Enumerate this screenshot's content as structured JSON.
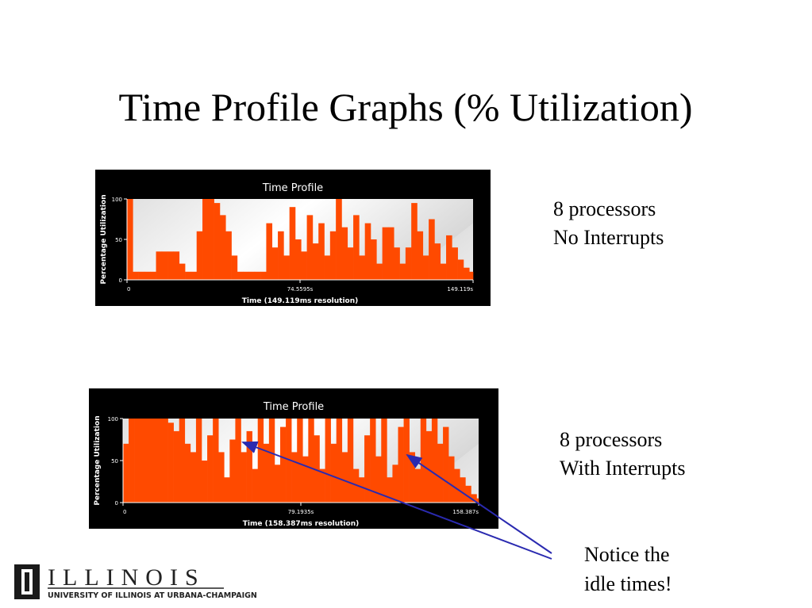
{
  "title": "Time Profile Graphs (% Utilization)",
  "chart_data": [
    {
      "type": "bar",
      "title": "Time Profile",
      "ylabel": "Percentage Utilization",
      "xlabel": "Time (149.119ms resolution)",
      "color": "#ff4a00",
      "xlim": [
        0,
        149.119
      ],
      "xticks": [
        0,
        {
          "value": 74.5595,
          "label": "74.5595s"
        },
        {
          "value": 149.119,
          "label": "149.119s"
        }
      ],
      "ylim": [
        0,
        100
      ],
      "yticks": [
        0,
        50,
        100
      ],
      "x": [
        0,
        2.5,
        5,
        7.5,
        10,
        12.5,
        15,
        17.5,
        20,
        22.5,
        25,
        27.5,
        30,
        32.5,
        35,
        37.5,
        40,
        42.5,
        45,
        47.5,
        50,
        52.5,
        55,
        57.5,
        60,
        62.5,
        65,
        67.5,
        70,
        72.5,
        75,
        77.5,
        80,
        82.5,
        85,
        87.5,
        90,
        92.5,
        95,
        97.5,
        100,
        102.5,
        105,
        107.5,
        110,
        112.5,
        115,
        117.5,
        120,
        122.5,
        125,
        127.5,
        130,
        132.5,
        135,
        137.5,
        140,
        142.5,
        145,
        147.5
      ],
      "values": [
        100,
        10,
        10,
        10,
        10,
        35,
        35,
        35,
        35,
        20,
        10,
        10,
        60,
        100,
        100,
        95,
        80,
        60,
        30,
        10,
        10,
        10,
        10,
        10,
        70,
        40,
        60,
        30,
        90,
        50,
        35,
        80,
        45,
        70,
        30,
        60,
        100,
        65,
        40,
        80,
        30,
        70,
        50,
        20,
        65,
        65,
        40,
        20,
        40,
        95,
        60,
        30,
        75,
        45,
        20,
        55,
        40,
        25,
        15,
        10
      ]
    },
    {
      "type": "bar",
      "title": "Time Profile",
      "ylabel": "Percentage Utilization",
      "xlabel": "Time (158.387ms resolution)",
      "color": "#ff4a00",
      "xlim": [
        0,
        158.387
      ],
      "xticks": [
        0,
        {
          "value": 79.1935,
          "label": "79.1935s"
        },
        {
          "value": 158.387,
          "label": "158.387s"
        }
      ],
      "ylim": [
        0,
        100
      ],
      "yticks": [
        0,
        50,
        100
      ],
      "x": [
        0,
        2.5,
        5,
        7.5,
        10,
        12.5,
        15,
        17.5,
        20,
        22.5,
        25,
        27.5,
        30,
        32.5,
        35,
        37.5,
        40,
        42.5,
        45,
        47.5,
        50,
        52.5,
        55,
        57.5,
        60,
        62.5,
        65,
        67.5,
        70,
        72.5,
        75,
        77.5,
        80,
        82.5,
        85,
        87.5,
        90,
        92.5,
        95,
        97.5,
        100,
        102.5,
        105,
        107.5,
        110,
        112.5,
        115,
        117.5,
        120,
        122.5,
        125,
        127.5,
        130,
        132.5,
        135,
        137.5,
        140,
        142.5,
        145,
        147.5,
        150,
        152.5,
        155,
        157.5
      ],
      "values": [
        70,
        100,
        100,
        100,
        100,
        100,
        100,
        100,
        95,
        85,
        100,
        70,
        60,
        100,
        50,
        80,
        100,
        60,
        30,
        75,
        100,
        60,
        85,
        40,
        100,
        70,
        100,
        45,
        90,
        100,
        60,
        100,
        55,
        100,
        80,
        40,
        100,
        70,
        100,
        60,
        100,
        40,
        30,
        80,
        100,
        55,
        100,
        30,
        45,
        90,
        100,
        60,
        40,
        100,
        85,
        100,
        70,
        90,
        55,
        40,
        30,
        20,
        10,
        5
      ]
    }
  ],
  "notes": [
    [
      "8 processors",
      "No Interrupts"
    ],
    [
      "8 processors",
      "With Interrupts"
    ]
  ],
  "callout": [
    "Notice the",
    "idle times!"
  ],
  "logo": {
    "name": "ILLINOIS",
    "subtitle": "UNIVERSITY OF ILLINOIS AT URBANA-CHAMPAIGN"
  }
}
